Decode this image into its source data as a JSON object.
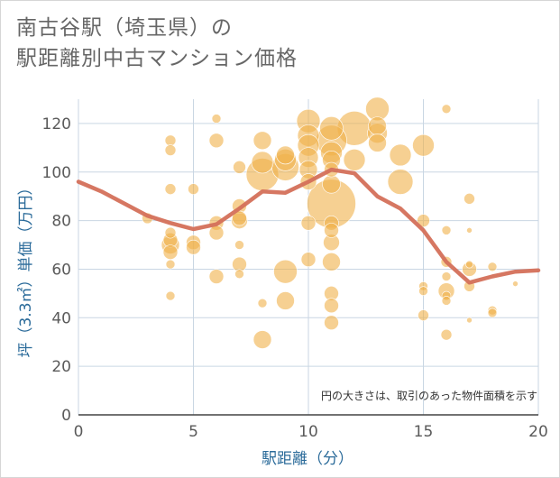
{
  "title_lines": [
    "南古谷駅（埼玉県）の",
    "駅距離別中古マンション価格"
  ],
  "chart_data": {
    "type": "scatter",
    "title": "南古谷駅（埼玉県）の駅距離別中古マンション価格",
    "xlabel": "駅距離（分）",
    "ylabel": "坪（3.3㎡）単価（万円）",
    "xlim": [
      0,
      20
    ],
    "ylim": [
      0,
      130
    ],
    "x_ticks": [
      0,
      5,
      10,
      15,
      20
    ],
    "y_ticks": [
      0,
      20,
      40,
      60,
      80,
      100,
      120
    ],
    "grid": true,
    "note": "円の大きさは、取引のあった物件面積を示す",
    "bubble_color": "#f0b04a",
    "line_color": "#d4705a",
    "points": [
      {
        "x": 3,
        "y": 81,
        "s": 6
      },
      {
        "x": 4,
        "y": 113,
        "s": 6
      },
      {
        "x": 4,
        "y": 109,
        "s": 6
      },
      {
        "x": 4,
        "y": 93,
        "s": 6
      },
      {
        "x": 4,
        "y": 75,
        "s": 6
      },
      {
        "x": 4,
        "y": 72,
        "s": 8
      },
      {
        "x": 4,
        "y": 70,
        "s": 10
      },
      {
        "x": 4,
        "y": 67,
        "s": 8
      },
      {
        "x": 4,
        "y": 62,
        "s": 5
      },
      {
        "x": 4,
        "y": 49,
        "s": 5
      },
      {
        "x": 5,
        "y": 93,
        "s": 6
      },
      {
        "x": 5,
        "y": 71,
        "s": 8
      },
      {
        "x": 5,
        "y": 69,
        "s": 8
      },
      {
        "x": 6,
        "y": 122,
        "s": 5
      },
      {
        "x": 6,
        "y": 113,
        "s": 8
      },
      {
        "x": 6,
        "y": 79,
        "s": 8
      },
      {
        "x": 6,
        "y": 75,
        "s": 8
      },
      {
        "x": 6,
        "y": 57,
        "s": 8
      },
      {
        "x": 7,
        "y": 102,
        "s": 7
      },
      {
        "x": 7,
        "y": 86,
        "s": 8
      },
      {
        "x": 7,
        "y": 81,
        "s": 8
      },
      {
        "x": 7,
        "y": 80,
        "s": 9
      },
      {
        "x": 7,
        "y": 70,
        "s": 5
      },
      {
        "x": 7,
        "y": 62,
        "s": 8
      },
      {
        "x": 7,
        "y": 58,
        "s": 5
      },
      {
        "x": 8,
        "y": 113,
        "s": 10
      },
      {
        "x": 8,
        "y": 104,
        "s": 12
      },
      {
        "x": 8,
        "y": 99,
        "s": 18
      },
      {
        "x": 8,
        "y": 46,
        "s": 5
      },
      {
        "x": 8,
        "y": 31,
        "s": 10
      },
      {
        "x": 9,
        "y": 107,
        "s": 10
      },
      {
        "x": 9,
        "y": 105,
        "s": 12
      },
      {
        "x": 9,
        "y": 102,
        "s": 15
      },
      {
        "x": 9,
        "y": 59,
        "s": 13
      },
      {
        "x": 9,
        "y": 47,
        "s": 10
      },
      {
        "x": 10,
        "y": 121,
        "s": 13
      },
      {
        "x": 10,
        "y": 115,
        "s": 12
      },
      {
        "x": 10,
        "y": 111,
        "s": 12
      },
      {
        "x": 10,
        "y": 106,
        "s": 11
      },
      {
        "x": 10,
        "y": 101,
        "s": 10
      },
      {
        "x": 10,
        "y": 96,
        "s": 9
      },
      {
        "x": 10,
        "y": 79,
        "s": 8
      },
      {
        "x": 10,
        "y": 64,
        "s": 8
      },
      {
        "x": 11,
        "y": 118,
        "s": 13
      },
      {
        "x": 11,
        "y": 113,
        "s": 17
      },
      {
        "x": 11,
        "y": 108,
        "s": 12
      },
      {
        "x": 11,
        "y": 105,
        "s": 10
      },
      {
        "x": 11,
        "y": 101,
        "s": 8
      },
      {
        "x": 11,
        "y": 95,
        "s": 10
      },
      {
        "x": 11,
        "y": 87,
        "s": 27
      },
      {
        "x": 11,
        "y": 79,
        "s": 8
      },
      {
        "x": 11,
        "y": 76,
        "s": 8
      },
      {
        "x": 11,
        "y": 71,
        "s": 9
      },
      {
        "x": 11,
        "y": 63,
        "s": 10
      },
      {
        "x": 11,
        "y": 50,
        "s": 8
      },
      {
        "x": 11,
        "y": 45,
        "s": 8
      },
      {
        "x": 11,
        "y": 38,
        "s": 8
      },
      {
        "x": 12,
        "y": 118,
        "s": 19
      },
      {
        "x": 12,
        "y": 105,
        "s": 12
      },
      {
        "x": 13,
        "y": 126,
        "s": 13
      },
      {
        "x": 13,
        "y": 119,
        "s": 10
      },
      {
        "x": 13,
        "y": 116,
        "s": 11
      },
      {
        "x": 13,
        "y": 112,
        "s": 10
      },
      {
        "x": 14,
        "y": 107,
        "s": 12
      },
      {
        "x": 14,
        "y": 96,
        "s": 14
      },
      {
        "x": 15,
        "y": 111,
        "s": 12
      },
      {
        "x": 15,
        "y": 80,
        "s": 7
      },
      {
        "x": 15,
        "y": 53,
        "s": 5
      },
      {
        "x": 15,
        "y": 51,
        "s": 5
      },
      {
        "x": 15,
        "y": 41,
        "s": 6
      },
      {
        "x": 16,
        "y": 126,
        "s": 5
      },
      {
        "x": 16,
        "y": 76,
        "s": 5
      },
      {
        "x": 16,
        "y": 63,
        "s": 6
      },
      {
        "x": 16,
        "y": 57,
        "s": 5
      },
      {
        "x": 16,
        "y": 51,
        "s": 9
      },
      {
        "x": 16,
        "y": 49,
        "s": 5
      },
      {
        "x": 16,
        "y": 47,
        "s": 5
      },
      {
        "x": 16,
        "y": 33,
        "s": 6
      },
      {
        "x": 17,
        "y": 89,
        "s": 6
      },
      {
        "x": 17,
        "y": 76,
        "s": 3
      },
      {
        "x": 17,
        "y": 62,
        "s": 4
      },
      {
        "x": 17,
        "y": 60,
        "s": 8
      },
      {
        "x": 17,
        "y": 53,
        "s": 6
      },
      {
        "x": 17,
        "y": 39,
        "s": 3
      },
      {
        "x": 18,
        "y": 61,
        "s": 5
      },
      {
        "x": 18,
        "y": 43,
        "s": 5
      },
      {
        "x": 18,
        "y": 42,
        "s": 5
      },
      {
        "x": 19,
        "y": 54,
        "s": 3
      }
    ],
    "line": {
      "x": [
        0,
        1,
        2,
        3,
        4,
        5,
        6,
        7,
        8,
        9,
        10,
        11,
        12,
        13,
        14,
        15,
        16,
        17,
        18,
        19,
        20
      ],
      "y": [
        96,
        92,
        87,
        82,
        79,
        76.5,
        78.5,
        85,
        92,
        91.5,
        96,
        101,
        99.5,
        90,
        85,
        76,
        63,
        54.5,
        57,
        59,
        59.5
      ]
    }
  }
}
